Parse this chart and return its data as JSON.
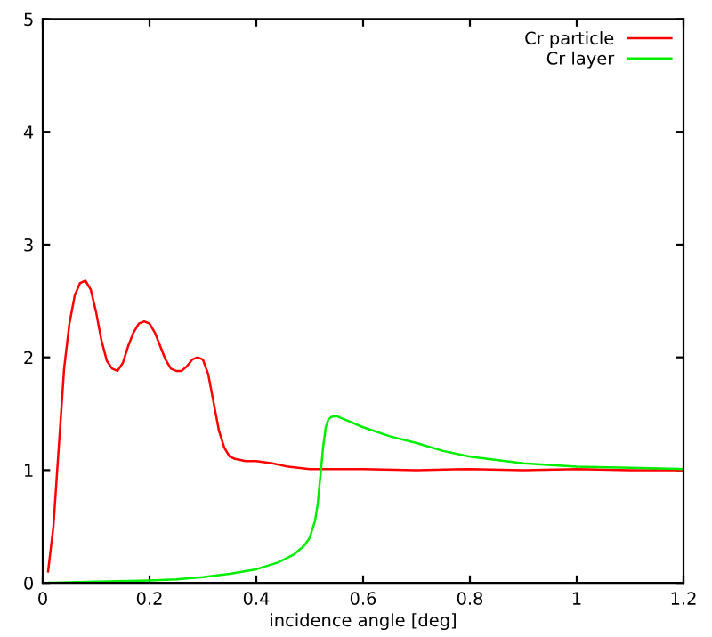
{
  "chart_data": {
    "type": "line",
    "xlabel": "incidence angle [deg]",
    "xlim": [
      0,
      1.2
    ],
    "xticks": [
      0,
      0.2,
      0.4,
      0.6,
      0.8,
      1,
      1.2
    ],
    "ylim": [
      0,
      5
    ],
    "yticks": [
      0,
      1,
      2,
      3,
      4,
      5
    ],
    "grid": false,
    "legend": "top right",
    "marker": "none",
    "line_style": "solid",
    "series": [
      {
        "name": "Cr particle",
        "color": "#ff0000",
        "x": [
          0.01,
          0.02,
          0.03,
          0.04,
          0.05,
          0.06,
          0.07,
          0.08,
          0.09,
          0.1,
          0.11,
          0.12,
          0.13,
          0.14,
          0.15,
          0.16,
          0.17,
          0.18,
          0.19,
          0.2,
          0.21,
          0.22,
          0.23,
          0.24,
          0.25,
          0.26,
          0.27,
          0.28,
          0.29,
          0.3,
          0.31,
          0.32,
          0.33,
          0.34,
          0.35,
          0.36,
          0.38,
          0.4,
          0.43,
          0.46,
          0.5,
          0.55,
          0.6,
          0.7,
          0.8,
          0.9,
          1.0,
          1.1,
          1.2
        ],
        "values": [
          0.1,
          0.5,
          1.2,
          1.9,
          2.3,
          2.55,
          2.66,
          2.68,
          2.6,
          2.4,
          2.15,
          1.97,
          1.9,
          1.88,
          1.95,
          2.1,
          2.22,
          2.3,
          2.32,
          2.3,
          2.22,
          2.1,
          1.98,
          1.9,
          1.88,
          1.88,
          1.92,
          1.98,
          2.0,
          1.98,
          1.85,
          1.6,
          1.35,
          1.2,
          1.12,
          1.1,
          1.08,
          1.08,
          1.06,
          1.03,
          1.01,
          1.01,
          1.01,
          1.0,
          1.01,
          1.0,
          1.01,
          1.0,
          1.0
        ]
      },
      {
        "name": "Cr layer",
        "color": "#00ee00",
        "x": [
          0.0,
          0.1,
          0.2,
          0.25,
          0.3,
          0.35,
          0.4,
          0.44,
          0.47,
          0.49,
          0.5,
          0.51,
          0.515,
          0.52,
          0.525,
          0.53,
          0.535,
          0.54,
          0.55,
          0.57,
          0.6,
          0.65,
          0.7,
          0.75,
          0.8,
          0.9,
          1.0,
          1.1,
          1.2
        ],
        "values": [
          0.0,
          0.01,
          0.02,
          0.03,
          0.05,
          0.08,
          0.12,
          0.18,
          0.25,
          0.33,
          0.4,
          0.55,
          0.7,
          0.95,
          1.2,
          1.38,
          1.45,
          1.47,
          1.48,
          1.44,
          1.38,
          1.3,
          1.24,
          1.17,
          1.12,
          1.06,
          1.03,
          1.02,
          1.01
        ]
      }
    ]
  }
}
